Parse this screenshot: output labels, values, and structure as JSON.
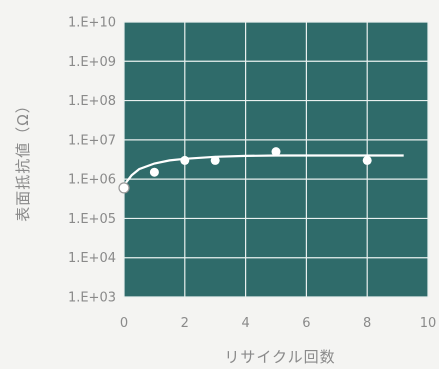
{
  "chart_data": {
    "type": "scatter",
    "xlabel": "リサイクル回数",
    "ylabel": "表面抵抗値（Ω）",
    "xlim": [
      0,
      10
    ],
    "ylim": [
      1000,
      10000000000
    ],
    "y_scale": "log",
    "grid": true,
    "x_ticks": [
      0,
      2,
      4,
      6,
      8,
      10
    ],
    "x_tick_labels": [
      "0",
      "2",
      "4",
      "6",
      "8",
      "10"
    ],
    "y_ticks": [
      1000,
      10000,
      100000,
      1000000,
      10000000,
      100000000,
      1000000000,
      10000000000
    ],
    "y_tick_labels": [
      "1.E+03",
      "1.E+04",
      "1.E+05",
      "1.E+06",
      "1.E+07",
      "1.E+08",
      "1.E+09",
      "1.E+10"
    ],
    "series": [
      {
        "type": "scatter",
        "points": [
          {
            "x": 0,
            "y": 600000
          },
          {
            "x": 1,
            "y": 1500000
          },
          {
            "x": 2,
            "y": 3000000
          },
          {
            "x": 3,
            "y": 3000000
          },
          {
            "x": 5,
            "y": 5000000
          },
          {
            "x": 8,
            "y": 3000000
          }
        ]
      },
      {
        "type": "line",
        "points": [
          {
            "x": 0,
            "y": 700000
          },
          {
            "x": 0.25,
            "y": 1250000
          },
          {
            "x": 0.5,
            "y": 1800000
          },
          {
            "x": 1,
            "y": 2500000
          },
          {
            "x": 1.5,
            "y": 3000000
          },
          {
            "x": 2,
            "y": 3300000
          },
          {
            "x": 3,
            "y": 3700000
          },
          {
            "x": 4,
            "y": 3900000
          },
          {
            "x": 5,
            "y": 4000000
          },
          {
            "x": 6,
            "y": 4000000
          },
          {
            "x": 7,
            "y": 4000000
          },
          {
            "x": 8,
            "y": 4000000
          },
          {
            "x": 9.2,
            "y": 4000000
          }
        ]
      }
    ],
    "colors": {
      "plot_background": "#2f6b6a",
      "gridline": "#e9f0ef",
      "marker_fill": "#ffffff",
      "fit_line": "#ffffff",
      "text": "#8a8a8a"
    }
  }
}
